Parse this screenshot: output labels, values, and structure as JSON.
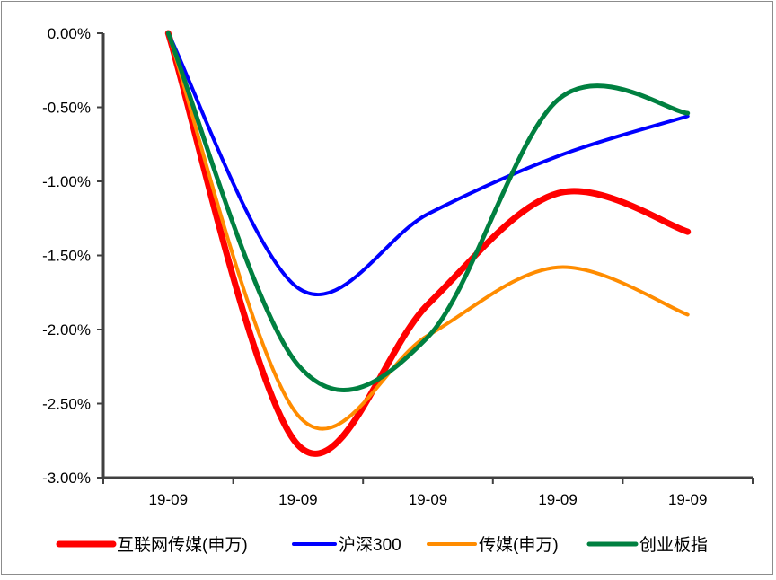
{
  "chart_data": {
    "type": "line",
    "title": "",
    "xlabel": "",
    "ylabel": "",
    "categories": [
      "19-09",
      "19-09",
      "19-09",
      "19-09",
      "19-09"
    ],
    "ylim": [
      -3.0,
      0.0
    ],
    "y_ticks": [
      0.0,
      -0.5,
      -1.0,
      -1.5,
      -2.0,
      -2.5,
      -3.0
    ],
    "y_tick_labels": [
      "0.00%",
      "-0.50%",
      "-1.00%",
      "-1.50%",
      "-2.00%",
      "-2.50%",
      "-3.00%"
    ],
    "grid": false,
    "smooth": true,
    "legend_position": "bottom",
    "series": [
      {
        "name": "互联网传媒(申万)",
        "color": "#ff0000",
        "values": [
          0.0,
          -2.78,
          -1.83,
          -1.08,
          -1.34
        ]
      },
      {
        "name": "沪深300",
        "color": "#0000ff",
        "values": [
          0.0,
          -1.72,
          -1.22,
          -0.83,
          -0.56
        ]
      },
      {
        "name": "传媒(申万)",
        "color": "#ff8c00",
        "values": [
          0.0,
          -2.58,
          -2.04,
          -1.58,
          -1.9
        ]
      },
      {
        "name": "创业板指",
        "color": "#008040",
        "values": [
          0.0,
          -2.24,
          -2.05,
          -0.45,
          -0.54
        ]
      }
    ]
  }
}
